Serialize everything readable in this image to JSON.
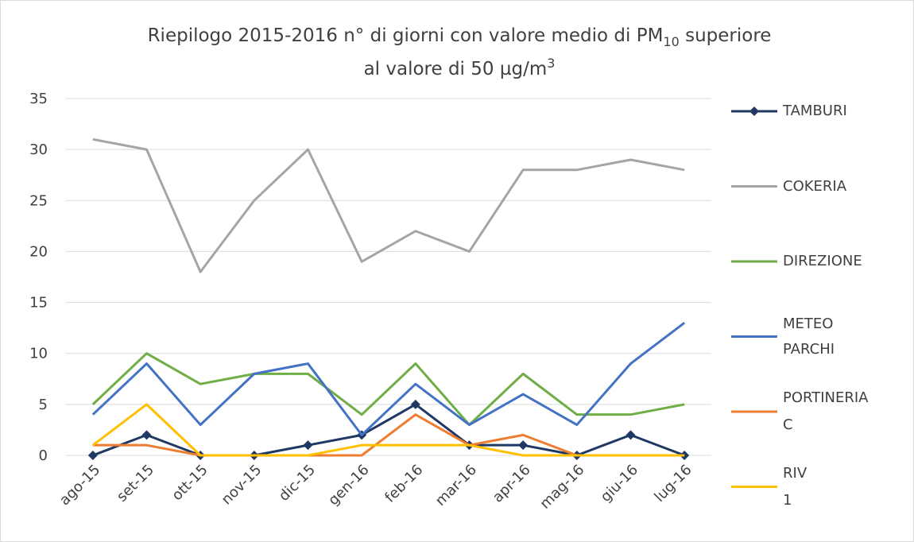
{
  "chart_data": {
    "type": "line",
    "title": [
      "Riepilogo 2015-2016  n° di giorni con valore medio di PM",
      "10",
      " superiore",
      "al valore di 50 µg/m",
      "3"
    ],
    "categories": [
      "ago-15",
      "set-15",
      "ott-15",
      "nov-15",
      "dic-15",
      "gen-16",
      "feb-16",
      "mar-16",
      "apr-16",
      "mag-16",
      "giu-16",
      "lug-16"
    ],
    "series": [
      {
        "name": "TAMBURI",
        "color": "#1f3864",
        "marker": "diamond",
        "values": [
          0,
          2,
          0,
          0,
          1,
          2,
          5,
          1,
          1,
          0,
          2,
          0
        ]
      },
      {
        "name": "COKERIA",
        "color": "#a5a5a5",
        "values": [
          31,
          30,
          18,
          25,
          30,
          19,
          22,
          20,
          28,
          28,
          29,
          28
        ]
      },
      {
        "name": "DIREZIONE",
        "color": "#70ad47",
        "values": [
          5,
          10,
          7,
          8,
          8,
          4,
          9,
          3,
          8,
          4,
          4,
          5
        ]
      },
      {
        "name": "METEO PARCHI",
        "color": "#4472c4",
        "values": [
          4,
          9,
          3,
          8,
          9,
          2,
          7,
          3,
          6,
          3,
          9,
          13
        ]
      },
      {
        "name": "PORTINERIA C",
        "color": "#ed7d31",
        "values": [
          1,
          1,
          0,
          0,
          0,
          0,
          4,
          1,
          2,
          0,
          0,
          0
        ]
      },
      {
        "name": "RIV 1",
        "color": "#ffc000",
        "values": [
          1,
          5,
          0,
          0,
          0,
          1,
          1,
          1,
          0,
          0,
          0,
          0
        ]
      }
    ],
    "ylim": [
      0,
      35
    ],
    "yticks": [
      0,
      5,
      10,
      15,
      20,
      25,
      30,
      35
    ],
    "grid": true,
    "legend": "right"
  }
}
